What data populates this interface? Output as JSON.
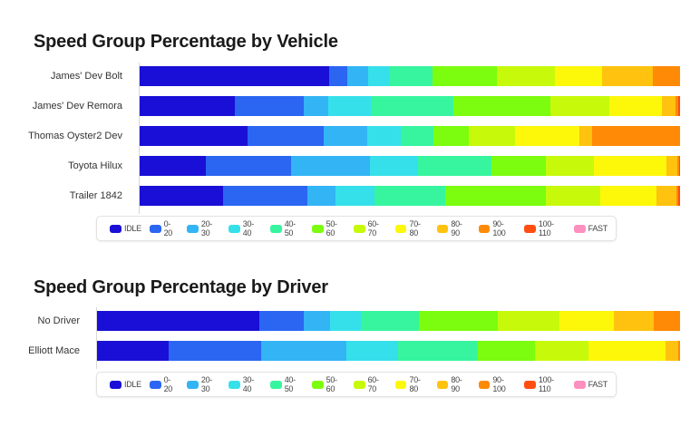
{
  "chart_data": [
    {
      "type": "bar",
      "orientation": "horizontal",
      "stacked": "percent",
      "title": "Speed Group Percentage by Vehicle",
      "xlabel": "",
      "ylabel": "",
      "xlim": [
        0,
        100
      ],
      "categories": [
        "James' Dev Bolt",
        "James' Dev Remora",
        "Thomas Oyster2 Dev",
        "Toyota Hilux",
        "Trailer 1842"
      ],
      "series": [
        {
          "name": "IDLE",
          "values": [
            35.1,
            17.6,
            20.0,
            12.2,
            15.4
          ]
        },
        {
          "name": "0-20",
          "values": [
            3.4,
            12.8,
            14.1,
            15.8,
            15.6
          ]
        },
        {
          "name": "20-30",
          "values": [
            3.9,
            4.4,
            8.1,
            14.6,
            5.2
          ]
        },
        {
          "name": "30-40",
          "values": [
            3.9,
            7.9,
            6.2,
            8.9,
            7.2
          ]
        },
        {
          "name": "40-50",
          "values": [
            7.9,
            15.3,
            6.0,
            13.6,
            13.1
          ]
        },
        {
          "name": "50-60",
          "values": [
            11.9,
            18.0,
            6.5,
            10.1,
            18.6
          ]
        },
        {
          "name": "60-70",
          "values": [
            10.9,
            10.9,
            8.6,
            8.9,
            10.2
          ]
        },
        {
          "name": "70-80",
          "values": [
            8.7,
            9.7,
            11.9,
            13.4,
            10.4
          ]
        },
        {
          "name": "80-90",
          "values": [
            9.4,
            2.5,
            2.3,
            2.0,
            3.7
          ]
        },
        {
          "name": "90-100",
          "values": [
            5.0,
            0.5,
            16.3,
            0.3,
            0.3
          ]
        },
        {
          "name": "100-110",
          "values": [
            0.0,
            0.3,
            0.0,
            0.2,
            0.3
          ]
        },
        {
          "name": "FAST",
          "values": [
            0.0,
            0.0,
            0.0,
            0.0,
            0.0
          ]
        }
      ],
      "legend": "bottom"
    },
    {
      "type": "bar",
      "orientation": "horizontal",
      "stacked": "percent",
      "title": "Speed Group Percentage by Driver",
      "xlabel": "",
      "ylabel": "",
      "xlim": [
        0,
        100
      ],
      "categories": [
        "No Driver",
        "Elliott Mace"
      ],
      "series": [
        {
          "name": "IDLE",
          "values": [
            27.8,
            12.3
          ]
        },
        {
          "name": "0-20",
          "values": [
            7.6,
            15.9
          ]
        },
        {
          "name": "20-30",
          "values": [
            4.5,
            14.5
          ]
        },
        {
          "name": "30-40",
          "values": [
            5.3,
            8.9
          ]
        },
        {
          "name": "40-50",
          "values": [
            10.0,
            13.7
          ]
        },
        {
          "name": "50-60",
          "values": [
            13.5,
            9.8
          ]
        },
        {
          "name": "60-70",
          "values": [
            10.6,
            9.2
          ]
        },
        {
          "name": "70-80",
          "values": [
            9.3,
            13.2
          ]
        },
        {
          "name": "80-90",
          "values": [
            6.8,
            2.2
          ]
        },
        {
          "name": "90-100",
          "values": [
            4.5,
            0.3
          ]
        },
        {
          "name": "100-110",
          "values": [
            0.0,
            0.0
          ]
        },
        {
          "name": "FAST",
          "values": [
            0.0,
            0.0
          ]
        }
      ],
      "legend": "bottom"
    }
  ],
  "series_colors": {
    "IDLE": "#1a0fd6",
    "0-20": "#2a66f2",
    "20-30": "#33b4f5",
    "30-40": "#36e0ea",
    "40-50": "#36f59e",
    "50-60": "#7cfc0e",
    "60-70": "#c6fa0a",
    "70-80": "#fdf70a",
    "80-90": "#ffc20e",
    "90-100": "#ff8a06",
    "100-110": "#ff4e12",
    "FAST": "#ff8fbf"
  },
  "legend_labels": [
    "IDLE",
    "0-20",
    "20-30",
    "30-40",
    "40-50",
    "50-60",
    "60-70",
    "70-80",
    "80-90",
    "90-100",
    "100-110",
    "FAST"
  ]
}
